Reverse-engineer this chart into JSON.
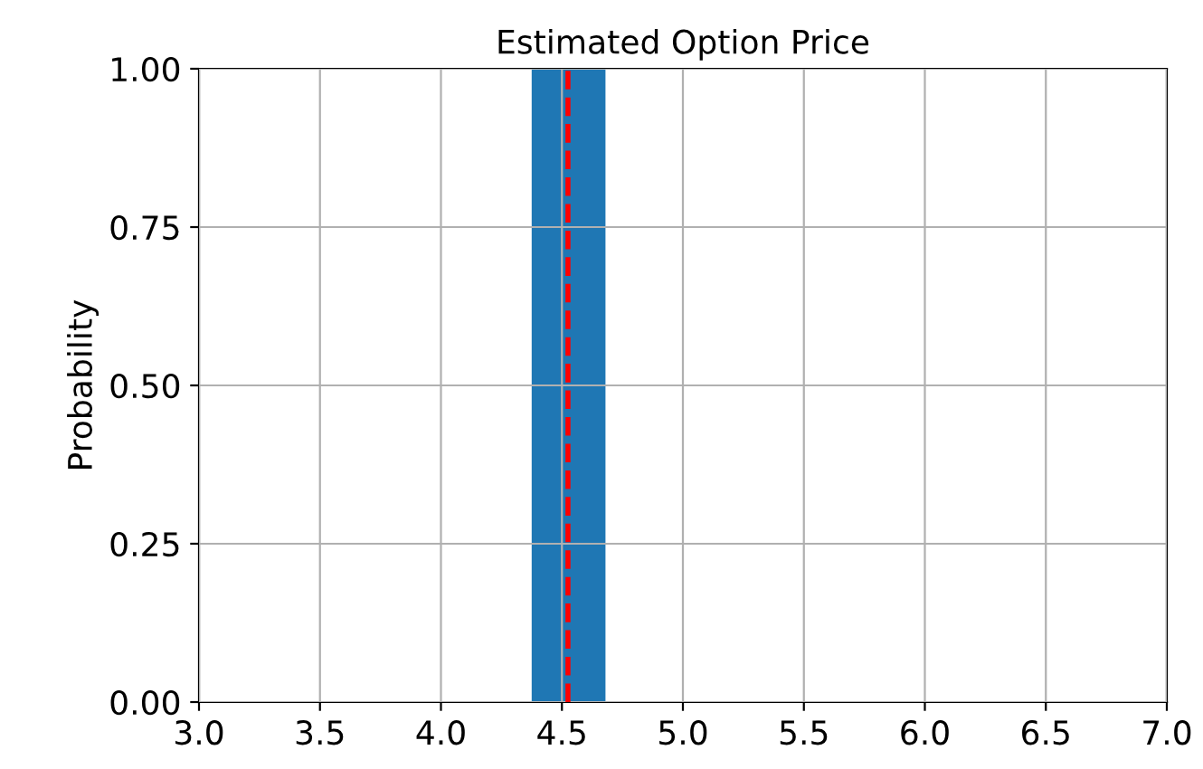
{
  "chart_data": {
    "type": "histogram",
    "title": "Estimated Option Price",
    "ylabel": "Probability",
    "bins": [
      4.375,
      4.68
    ],
    "values": [
      1.0
    ],
    "color": "#1f77b4",
    "xlim": [
      3.0,
      7.0
    ],
    "xticks": [
      {
        "value": 3.0,
        "label": "3.0"
      },
      {
        "value": 3.5,
        "label": "3.5"
      },
      {
        "value": 4.0,
        "label": "4.0"
      },
      {
        "value": 4.5,
        "label": "4.5"
      },
      {
        "value": 5.0,
        "label": "5.0"
      },
      {
        "value": 5.5,
        "label": "5.5"
      },
      {
        "value": 6.0,
        "label": "6.0"
      },
      {
        "value": 6.5,
        "label": "6.5"
      },
      {
        "value": 7.0,
        "label": "7.0"
      }
    ],
    "ylim": [
      0.0,
      1.0
    ],
    "yticks": [
      {
        "value": 0.0,
        "label": "0.00"
      },
      {
        "value": 0.25,
        "label": "0.25"
      },
      {
        "value": 0.5,
        "label": "0.50"
      },
      {
        "value": 0.75,
        "label": "0.75"
      },
      {
        "value": 1.0,
        "label": "1.00"
      }
    ],
    "grid": true,
    "ref_lines": [
      {
        "axis": "x",
        "value": 4.525,
        "color": "#ff0000",
        "line_style": "dashed"
      }
    ]
  }
}
